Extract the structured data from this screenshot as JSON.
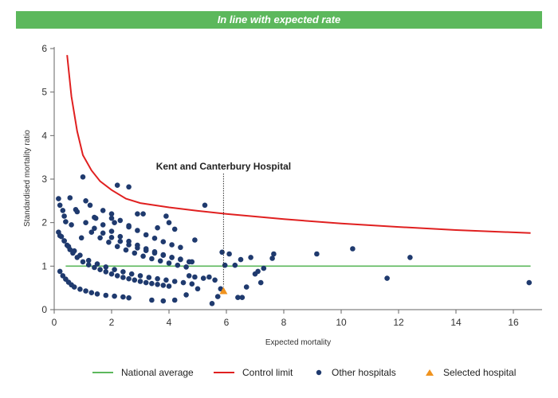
{
  "header": {
    "banner": "In line with expected rate"
  },
  "colors": {
    "banner": "#5cb85c",
    "national_average": "#5cb85c",
    "control_limit": "#e02020",
    "other_hospitals": "#1f3a6e",
    "selected_hospital": "#f0931e"
  },
  "chart_data": {
    "type": "scatter",
    "xlabel": "Expected mortality",
    "ylabel": "Standardised mortality ratio",
    "xlim": [
      0,
      17
    ],
    "ylim": [
      0,
      6
    ],
    "xticks": [
      0,
      2,
      4,
      6,
      8,
      10,
      12,
      14,
      16
    ],
    "yticks": [
      0,
      1,
      2,
      3,
      4,
      5,
      6
    ],
    "grid": false,
    "legend": "bottom",
    "annotation": {
      "text": "Kent and Canterbury Hospital",
      "x": 5.9
    },
    "series": [
      {
        "name": "National average",
        "kind": "line",
        "x": [
          0.4,
          16.6
        ],
        "y": [
          1,
          1
        ]
      },
      {
        "name": "Control limit",
        "kind": "line",
        "x": [
          0.45,
          0.6,
          0.8,
          1.0,
          1.3,
          1.6,
          2.0,
          2.5,
          3.0,
          4.0,
          5.0,
          6.0,
          7.0,
          8.0,
          10.0,
          12.0,
          14.0,
          16.6
        ],
        "y": [
          5.85,
          4.9,
          4.1,
          3.55,
          3.2,
          2.95,
          2.75,
          2.55,
          2.45,
          2.35,
          2.27,
          2.2,
          2.14,
          2.08,
          1.98,
          1.9,
          1.83,
          1.76
        ]
      },
      {
        "name": "Other hospitals",
        "kind": "scatter",
        "x": [
          0.2,
          0.3,
          0.4,
          0.5,
          0.6,
          0.7,
          0.9,
          1.1,
          1.3,
          1.5,
          1.8,
          2.1,
          2.4,
          2.6,
          0.15,
          0.25,
          0.35,
          0.45,
          0.55,
          0.65,
          0.8,
          1.0,
          1.2,
          1.4,
          1.6,
          1.8,
          2.0,
          2.2,
          2.4,
          2.6,
          2.8,
          3.0,
          3.2,
          3.4,
          3.6,
          3.8,
          4.0,
          0.2,
          0.35,
          0.5,
          0.7,
          0.9,
          1.2,
          1.5,
          1.8,
          2.1,
          2.4,
          2.7,
          3.0,
          3.3,
          3.6,
          3.9,
          4.2,
          4.5,
          4.8,
          1.3,
          1.6,
          1.9,
          2.2,
          2.5,
          2.8,
          3.1,
          3.4,
          3.7,
          4.0,
          4.3,
          4.6,
          1.4,
          1.7,
          2.0,
          2.3,
          2.6,
          2.9,
          3.2,
          3.5,
          3.8,
          4.1,
          4.4,
          4.7,
          1.1,
          1.4,
          1.7,
          2.0,
          2.3,
          2.6,
          2.9,
          3.2,
          3.5,
          3.8,
          4.1,
          4.4,
          4.8,
          2.0,
          2.3,
          2.6,
          2.9,
          3.2,
          3.5,
          3.8,
          4.1,
          4.4,
          0.15,
          0.2,
          0.3,
          0.35,
          0.4,
          0.55,
          0.6,
          0.75,
          0.8,
          0.95,
          1.0,
          1.1,
          1.25,
          1.45,
          1.7,
          2.0,
          2.1,
          2.6,
          2.9,
          3.1,
          3.6,
          3.9,
          4.0,
          4.2,
          4.9,
          2.2,
          2.6,
          5.25,
          4.7,
          4.9,
          5.2,
          5.4,
          5.6,
          5.8,
          5.85,
          5.95,
          6.1,
          6.4,
          6.55,
          6.7,
          6.85,
          7.0,
          7.1,
          7.2,
          7.3,
          7.6,
          7.65,
          3.4,
          3.8,
          4.2,
          4.6,
          5.0,
          5.5,
          5.7,
          6.5,
          6.3,
          9.15,
          10.4,
          11.6,
          12.4,
          16.55
        ],
        "y": [
          0.88,
          0.78,
          0.7,
          0.63,
          0.57,
          0.52,
          0.47,
          0.43,
          0.39,
          0.36,
          0.33,
          0.31,
          0.29,
          0.27,
          1.78,
          1.68,
          1.58,
          1.48,
          1.38,
          1.3,
          1.2,
          1.1,
          1.03,
          0.97,
          0.92,
          0.87,
          0.82,
          0.78,
          0.74,
          0.71,
          0.68,
          0.65,
          0.62,
          0.6,
          0.58,
          0.56,
          0.54,
          1.7,
          1.58,
          1.45,
          1.35,
          1.25,
          1.13,
          1.05,
          0.98,
          0.92,
          0.87,
          0.82,
          0.78,
          0.74,
          0.71,
          0.68,
          0.65,
          0.62,
          0.59,
          1.78,
          1.65,
          1.55,
          1.45,
          1.37,
          1.3,
          1.23,
          1.17,
          1.12,
          1.07,
          1.02,
          0.98,
          2.12,
          1.95,
          1.8,
          1.68,
          1.57,
          1.48,
          1.4,
          1.33,
          1.26,
          1.2,
          1.15,
          1.1,
          2.0,
          1.87,
          1.76,
          1.66,
          1.57,
          1.49,
          1.42,
          1.36,
          1.3,
          1.25,
          1.2,
          1.16,
          1.1,
          2.2,
          2.05,
          1.93,
          1.82,
          1.72,
          1.64,
          1.56,
          1.49,
          1.43,
          2.55,
          2.4,
          2.28,
          2.15,
          2.02,
          2.57,
          1.95,
          2.3,
          2.25,
          1.65,
          3.05,
          2.5,
          2.4,
          2.1,
          2.28,
          2.1,
          2.0,
          1.9,
          2.2,
          2.2,
          1.88,
          2.15,
          2.0,
          1.85,
          1.6,
          2.86,
          2.82,
          2.4,
          0.78,
          0.75,
          0.72,
          0.75,
          0.68,
          0.48,
          1.32,
          1.02,
          1.28,
          0.28,
          0.28,
          0.52,
          1.2,
          0.82,
          0.88,
          0.62,
          0.95,
          1.18,
          1.28,
          0.22,
          0.2,
          0.22,
          0.34,
          0.48,
          0.14,
          0.3,
          1.15,
          1.02,
          1.28,
          1.4,
          0.72,
          1.2,
          0.62
        ]
      },
      {
        "name": "Selected hospital",
        "kind": "marker",
        "x": [
          5.9
        ],
        "y": [
          0.43
        ]
      }
    ]
  }
}
